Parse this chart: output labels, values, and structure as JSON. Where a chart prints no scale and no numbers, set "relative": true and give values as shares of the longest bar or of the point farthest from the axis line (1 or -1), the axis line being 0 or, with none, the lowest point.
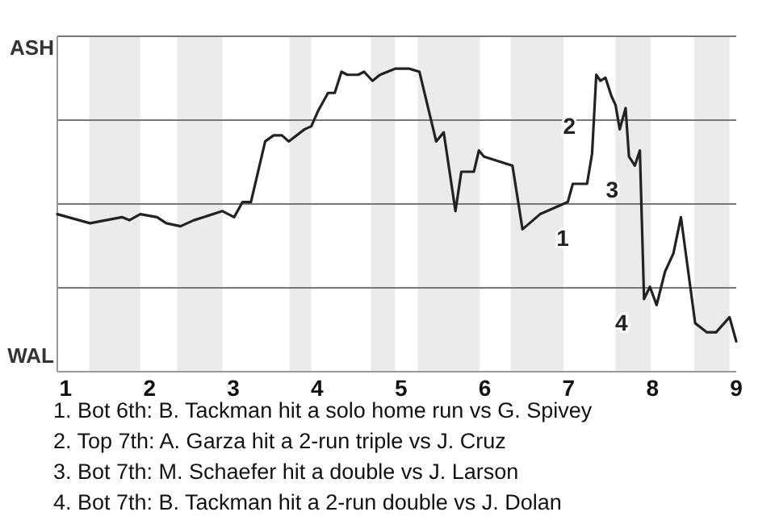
{
  "chart_data": {
    "type": "line",
    "relative": true,
    "x": [
      0.9,
      1.29,
      1.67,
      1.76,
      1.89,
      2.09,
      2.2,
      2.37,
      2.53,
      2.87,
      3.01,
      3.11,
      3.21,
      3.38,
      3.48,
      3.58,
      3.66,
      3.85,
      3.93,
      4.01,
      4.13,
      4.21,
      4.29,
      4.36,
      4.49,
      4.56,
      4.66,
      4.75,
      4.93,
      5.03,
      5.1,
      5.22,
      5.42,
      5.51,
      5.65,
      5.72,
      5.87,
      5.93,
      5.99,
      6.33,
      6.45,
      6.66,
      6.99,
      7.05,
      7.22,
      7.28,
      7.33,
      7.38,
      7.44,
      7.51,
      7.56,
      7.61,
      7.68,
      7.72,
      7.79,
      7.85,
      7.9,
      7.97,
      8.05,
      8.15,
      8.25,
      8.34,
      8.51,
      8.65,
      8.76,
      8.92,
      9
    ],
    "series": [
      {
        "color": "#222222",
        "values": [
          0.52,
          0.49,
          0.51,
          0.5,
          0.52,
          0.51,
          0.49,
          0.48,
          0.5,
          0.53,
          0.51,
          0.56,
          0.56,
          0.76,
          0.78,
          0.78,
          0.76,
          0.8,
          0.81,
          0.86,
          0.92,
          0.92,
          0.99,
          0.98,
          0.98,
          0.99,
          0.96,
          0.98,
          1,
          1,
          1,
          0.99,
          0.76,
          0.79,
          0.53,
          0.66,
          0.66,
          0.73,
          0.71,
          0.68,
          0.47,
          0.52,
          0.56,
          0.62,
          0.62,
          0.72,
          0.98,
          0.96,
          0.97,
          0.91,
          0.88,
          0.8,
          0.87,
          0.71,
          0.68,
          0.73,
          0.24,
          0.28,
          0.22,
          0.33,
          0.39,
          0.51,
          0.16,
          0.13,
          0.13,
          0.18,
          0.1
        ]
      }
    ],
    "xlim": [
      0.9,
      9
    ],
    "xticks": [
      1,
      2,
      3,
      4,
      5,
      6,
      7,
      8,
      9
    ],
    "grid": "y",
    "marker": "none",
    "line_style": "solid",
    "bands": [
      {
        "axis": "x",
        "from": 1.28,
        "to": 1.89,
        "color": "#ebebeb"
      },
      {
        "axis": "x",
        "from": 2.33,
        "to": 2.87,
        "color": "#ebebeb"
      },
      {
        "axis": "x",
        "from": 3.67,
        "to": 3.93,
        "color": "#ebebeb"
      },
      {
        "axis": "x",
        "from": 4.64,
        "to": 4.93,
        "color": "#ebebeb"
      },
      {
        "axis": "x",
        "from": 5.2,
        "to": 5.94,
        "color": "#ebebeb"
      },
      {
        "axis": "x",
        "from": 6.31,
        "to": 6.94,
        "color": "#ebebeb"
      },
      {
        "axis": "x",
        "from": 7.56,
        "to": 7.98,
        "color": "#ebebeb"
      },
      {
        "axis": "x",
        "from": 8.5,
        "to": 8.92,
        "color": "#ebebeb"
      }
    ],
    "annotations": [
      "ASH",
      "WAL",
      {
        "text": "1",
        "x": 6.66,
        "y": 0.52
      },
      {
        "text": "2",
        "x": 7.28,
        "y": 0.72
      },
      {
        "text": "3",
        "x": 7.79,
        "y": 0.68
      },
      {
        "text": "4",
        "x": 7.9,
        "y": 0.24
      },
      "1. Bot 6th: B. Tackman hit a solo home run vs G. Spivey",
      "2. Top 7th: A. Garza hit a 2-run triple vs J. Cruz",
      "3. Bot 7th: M. Schaefer hit a double vs J. Larson",
      "4. Bot 7th: B. Tackman hit a 2-run double vs J. Dolan"
    ]
  }
}
